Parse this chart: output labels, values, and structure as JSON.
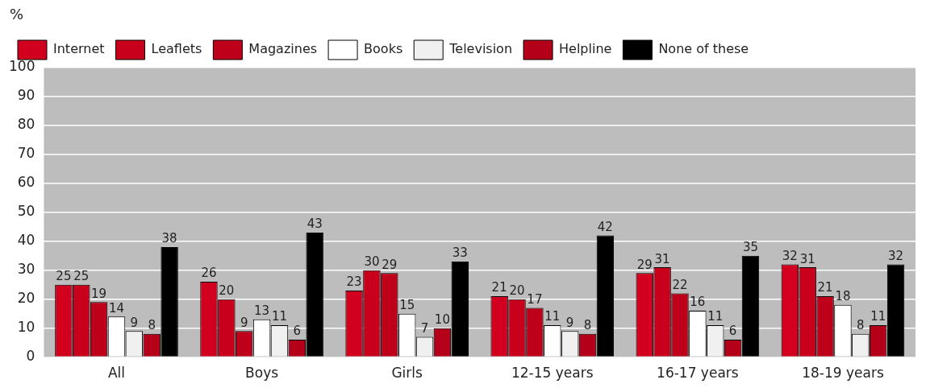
{
  "chart_data": {
    "type": "bar",
    "ylabel": "%",
    "categories": [
      "All",
      "Boys",
      "Girls",
      "12-15 years",
      "16-17 years",
      "18-19 years"
    ],
    "series": [
      {
        "name": "Internet",
        "color": "#d2001e",
        "values": [
          25,
          26,
          23,
          21,
          29,
          32
        ]
      },
      {
        "name": "Leaflets",
        "color": "#c8001c",
        "values": [
          25,
          20,
          30,
          20,
          31,
          31
        ]
      },
      {
        "name": "Magazines",
        "color": "#be001a",
        "values": [
          19,
          9,
          29,
          17,
          22,
          21
        ]
      },
      {
        "name": "Books",
        "color": "#ffffff",
        "values": [
          14,
          13,
          15,
          11,
          16,
          18
        ]
      },
      {
        "name": "Television",
        "color": "#f0f0f0",
        "values": [
          9,
          11,
          7,
          9,
          11,
          8
        ]
      },
      {
        "name": "Helpline",
        "color": "#b40018",
        "values": [
          8,
          6,
          10,
          8,
          6,
          11
        ]
      },
      {
        "name": "None of these",
        "color": "#000000",
        "values": [
          38,
          43,
          33,
          42,
          35,
          32
        ]
      }
    ],
    "ylim": [
      0,
      100
    ],
    "yticks": [
      0,
      10,
      20,
      30,
      40,
      50,
      60,
      70,
      80,
      90,
      100
    ],
    "grid": "y",
    "legend": "top left",
    "data_labels": true
  }
}
